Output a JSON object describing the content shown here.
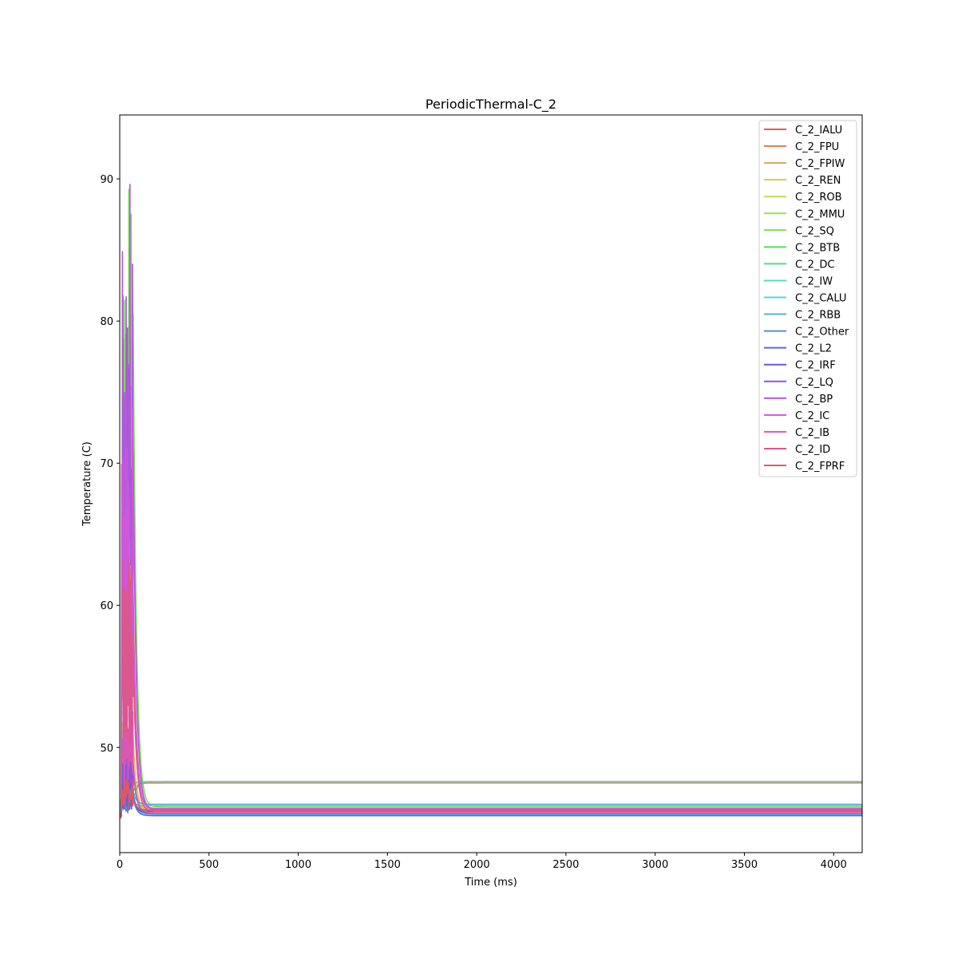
{
  "chart_data": {
    "type": "line",
    "title": "PeriodicThermal-C_2",
    "xlabel": "Time (ms)",
    "ylabel": "Temperature (C)",
    "xlim": [
      0,
      4160
    ],
    "ylim": [
      42.6,
      94.5
    ],
    "xticks": [
      0,
      500,
      1000,
      1500,
      2000,
      2500,
      3000,
      3500,
      4000
    ],
    "yticks": [
      50,
      60,
      70,
      80,
      90
    ],
    "legend_position": "top-right",
    "grid": false,
    "series": [
      {
        "name": "C_2_IALU",
        "color": "#db5f57",
        "start": 45.0,
        "peak": 74.0,
        "steady": 45.6
      },
      {
        "name": "C_2_FPU",
        "color": "#db8157",
        "start": 45.0,
        "peak": 48.0,
        "steady": 47.5
      },
      {
        "name": "C_2_FPIW",
        "color": "#dba457",
        "start": 45.0,
        "peak": 50.0,
        "steady": 45.7
      },
      {
        "name": "C_2_REN",
        "color": "#dbc657",
        "start": 45.0,
        "peak": 51.0,
        "steady": 45.5
      },
      {
        "name": "C_2_ROB",
        "color": "#c1db57",
        "start": 45.0,
        "peak": 52.0,
        "steady": 45.6
      },
      {
        "name": "C_2_MMU",
        "color": "#9edb57",
        "start": 45.0,
        "peak": 50.0,
        "steady": 45.3
      },
      {
        "name": "C_2_SQ",
        "color": "#7cdb57",
        "start": 45.0,
        "peak": 89.6,
        "steady": 45.8
      },
      {
        "name": "C_2_BTB",
        "color": "#59db57",
        "start": 45.0,
        "peak": 48.0,
        "steady": 47.6
      },
      {
        "name": "C_2_DC",
        "color": "#57db80",
        "start": 45.0,
        "peak": 50.0,
        "steady": 45.9
      },
      {
        "name": "C_2_IW",
        "color": "#57dbc2",
        "start": 45.0,
        "peak": 47.0,
        "steady": 45.3
      },
      {
        "name": "C_2_CALU",
        "color": "#57d3db",
        "start": 45.0,
        "peak": 48.0,
        "steady": 47.6
      },
      {
        "name": "C_2_RBB",
        "color": "#57b0db",
        "start": 45.0,
        "peak": 51.0,
        "steady": 46.0
      },
      {
        "name": "C_2_Other",
        "color": "#578edb",
        "start": 45.0,
        "peak": 51.5,
        "steady": 45.3
      },
      {
        "name": "C_2_L2",
        "color": "#576bdb",
        "start": 45.0,
        "peak": 46.8,
        "steady": 45.2
      },
      {
        "name": "C_2_IRF",
        "color": "#6957db",
        "start": 45.0,
        "peak": 50.0,
        "steady": 45.4
      },
      {
        "name": "C_2_LQ",
        "color": "#8b57db",
        "start": 45.0,
        "peak": 50.0,
        "steady": 45.5
      },
      {
        "name": "C_2_BP",
        "color": "#ae57db",
        "start": 45.0,
        "peak": 92.2,
        "steady": 45.6
      },
      {
        "name": "C_2_IC",
        "color": "#d057db",
        "start": 45.0,
        "peak": 77.0,
        "steady": 45.7
      },
      {
        "name": "C_2_IB",
        "color": "#db57b2",
        "start": 45.0,
        "peak": 55.0,
        "steady": 45.4
      },
      {
        "name": "C_2_ID",
        "color": "#db578f",
        "start": 45.0,
        "peak": 65.0,
        "steady": 45.5
      },
      {
        "name": "C_2_FPRF",
        "color": "#db576d",
        "start": 45.0,
        "peak": 48.0,
        "steady": 45.6
      }
    ]
  }
}
